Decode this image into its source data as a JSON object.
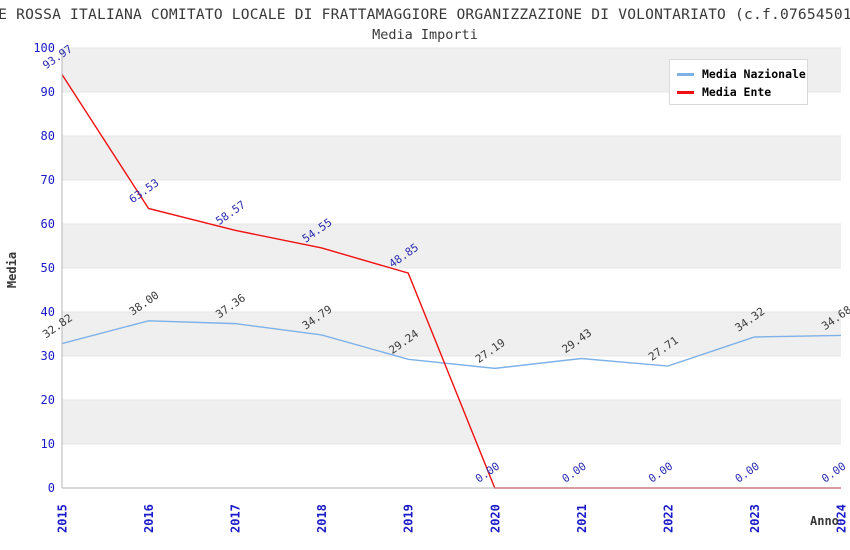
{
  "header": {
    "title": "E ROSSA ITALIANA COMITATO LOCALE DI FRATTAMAGGIORE ORGANIZZAZIONE DI VOLONTARIATO (c.f.07654501",
    "subtitle": "Media Importi"
  },
  "chart_data": {
    "type": "line",
    "title": "Media Importi",
    "xlabel": "Anno",
    "ylabel": "Media",
    "categories": [
      "2015",
      "2016",
      "2017",
      "2018",
      "2019",
      "2020",
      "2021",
      "2022",
      "2023",
      "2024"
    ],
    "ylim": [
      0,
      100
    ],
    "ytick_step": 10,
    "grid": "alternating-horizontal-bands",
    "legend_position": "top-right",
    "colors": {
      "band": "#efefef",
      "gridline": "#e6e6e6",
      "axis": "#b5b5b5",
      "tick_label": "#1a1ac8",
      "title_text": "#383838"
    },
    "series": [
      {
        "name": "Media Nazionale",
        "color": "#7db1e8",
        "label_color": "#3a3a3a",
        "values": [
          32.82,
          38.0,
          37.36,
          34.79,
          29.24,
          27.19,
          29.43,
          27.71,
          34.32,
          34.68
        ]
      },
      {
        "name": "Media Ente",
        "color": "#ef1111",
        "label_color": "#2c2cb0",
        "values": [
          93.97,
          63.53,
          58.57,
          54.55,
          48.85,
          0.0,
          0.0,
          0.0,
          0.0,
          0.0
        ]
      }
    ]
  }
}
